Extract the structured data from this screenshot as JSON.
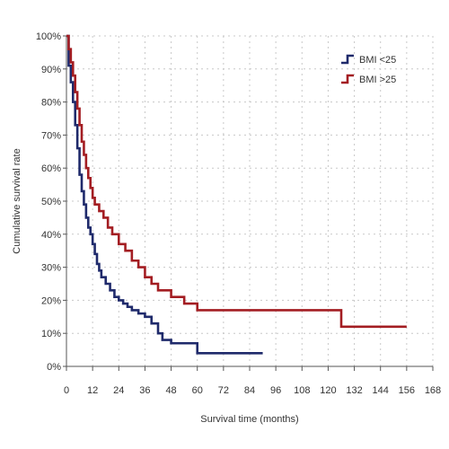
{
  "chart_data": {
    "type": "line",
    "step": true,
    "title": "",
    "xlabel": "Survival time (months)",
    "ylabel": "Cumulative survival rate",
    "xlim": [
      0,
      168
    ],
    "ylim": [
      0,
      100
    ],
    "x_ticks": [
      "0",
      "12",
      "24",
      "36",
      "48",
      "60",
      "72",
      "84",
      "96",
      "108",
      "120",
      "132",
      "144",
      "156",
      "168"
    ],
    "y_ticks": [
      "0%",
      "10%",
      "20%",
      "30%",
      "40%",
      "50%",
      "60%",
      "70%",
      "80%",
      "90%",
      "100%"
    ],
    "grid": true,
    "legend_position": "top-right",
    "series": [
      {
        "name": "BMI <25",
        "color": "#1f2a6b",
        "x": [
          0,
          1,
          2,
          3,
          4,
          5,
          6,
          7,
          8,
          9,
          10,
          11,
          12,
          13,
          14,
          15,
          16,
          18,
          20,
          22,
          24,
          26,
          28,
          30,
          33,
          36,
          39,
          42,
          44,
          48,
          60,
          90
        ],
        "y": [
          100,
          91,
          86,
          80,
          73,
          66,
          58,
          53,
          49,
          45,
          42,
          40,
          37,
          34,
          31,
          29,
          27,
          25,
          23,
          21,
          20,
          19,
          18,
          17,
          16,
          15,
          13,
          10,
          8,
          7,
          4,
          4
        ]
      },
      {
        "name": "BMI >25",
        "color": "#a31d22",
        "x": [
          0,
          1,
          2,
          3,
          4,
          5,
          6,
          7,
          8,
          9,
          10,
          11,
          12,
          13,
          15,
          17,
          19,
          21,
          24,
          27,
          30,
          33,
          36,
          39,
          42,
          48,
          54,
          60,
          72,
          120,
          126,
          156
        ],
        "y": [
          100,
          96,
          92,
          88,
          83,
          78,
          73,
          68,
          64,
          60,
          57,
          54,
          51,
          49,
          47,
          45,
          42,
          40,
          37,
          35,
          32,
          30,
          27,
          25,
          23,
          21,
          19,
          17,
          17,
          17,
          12,
          12
        ]
      }
    ]
  }
}
